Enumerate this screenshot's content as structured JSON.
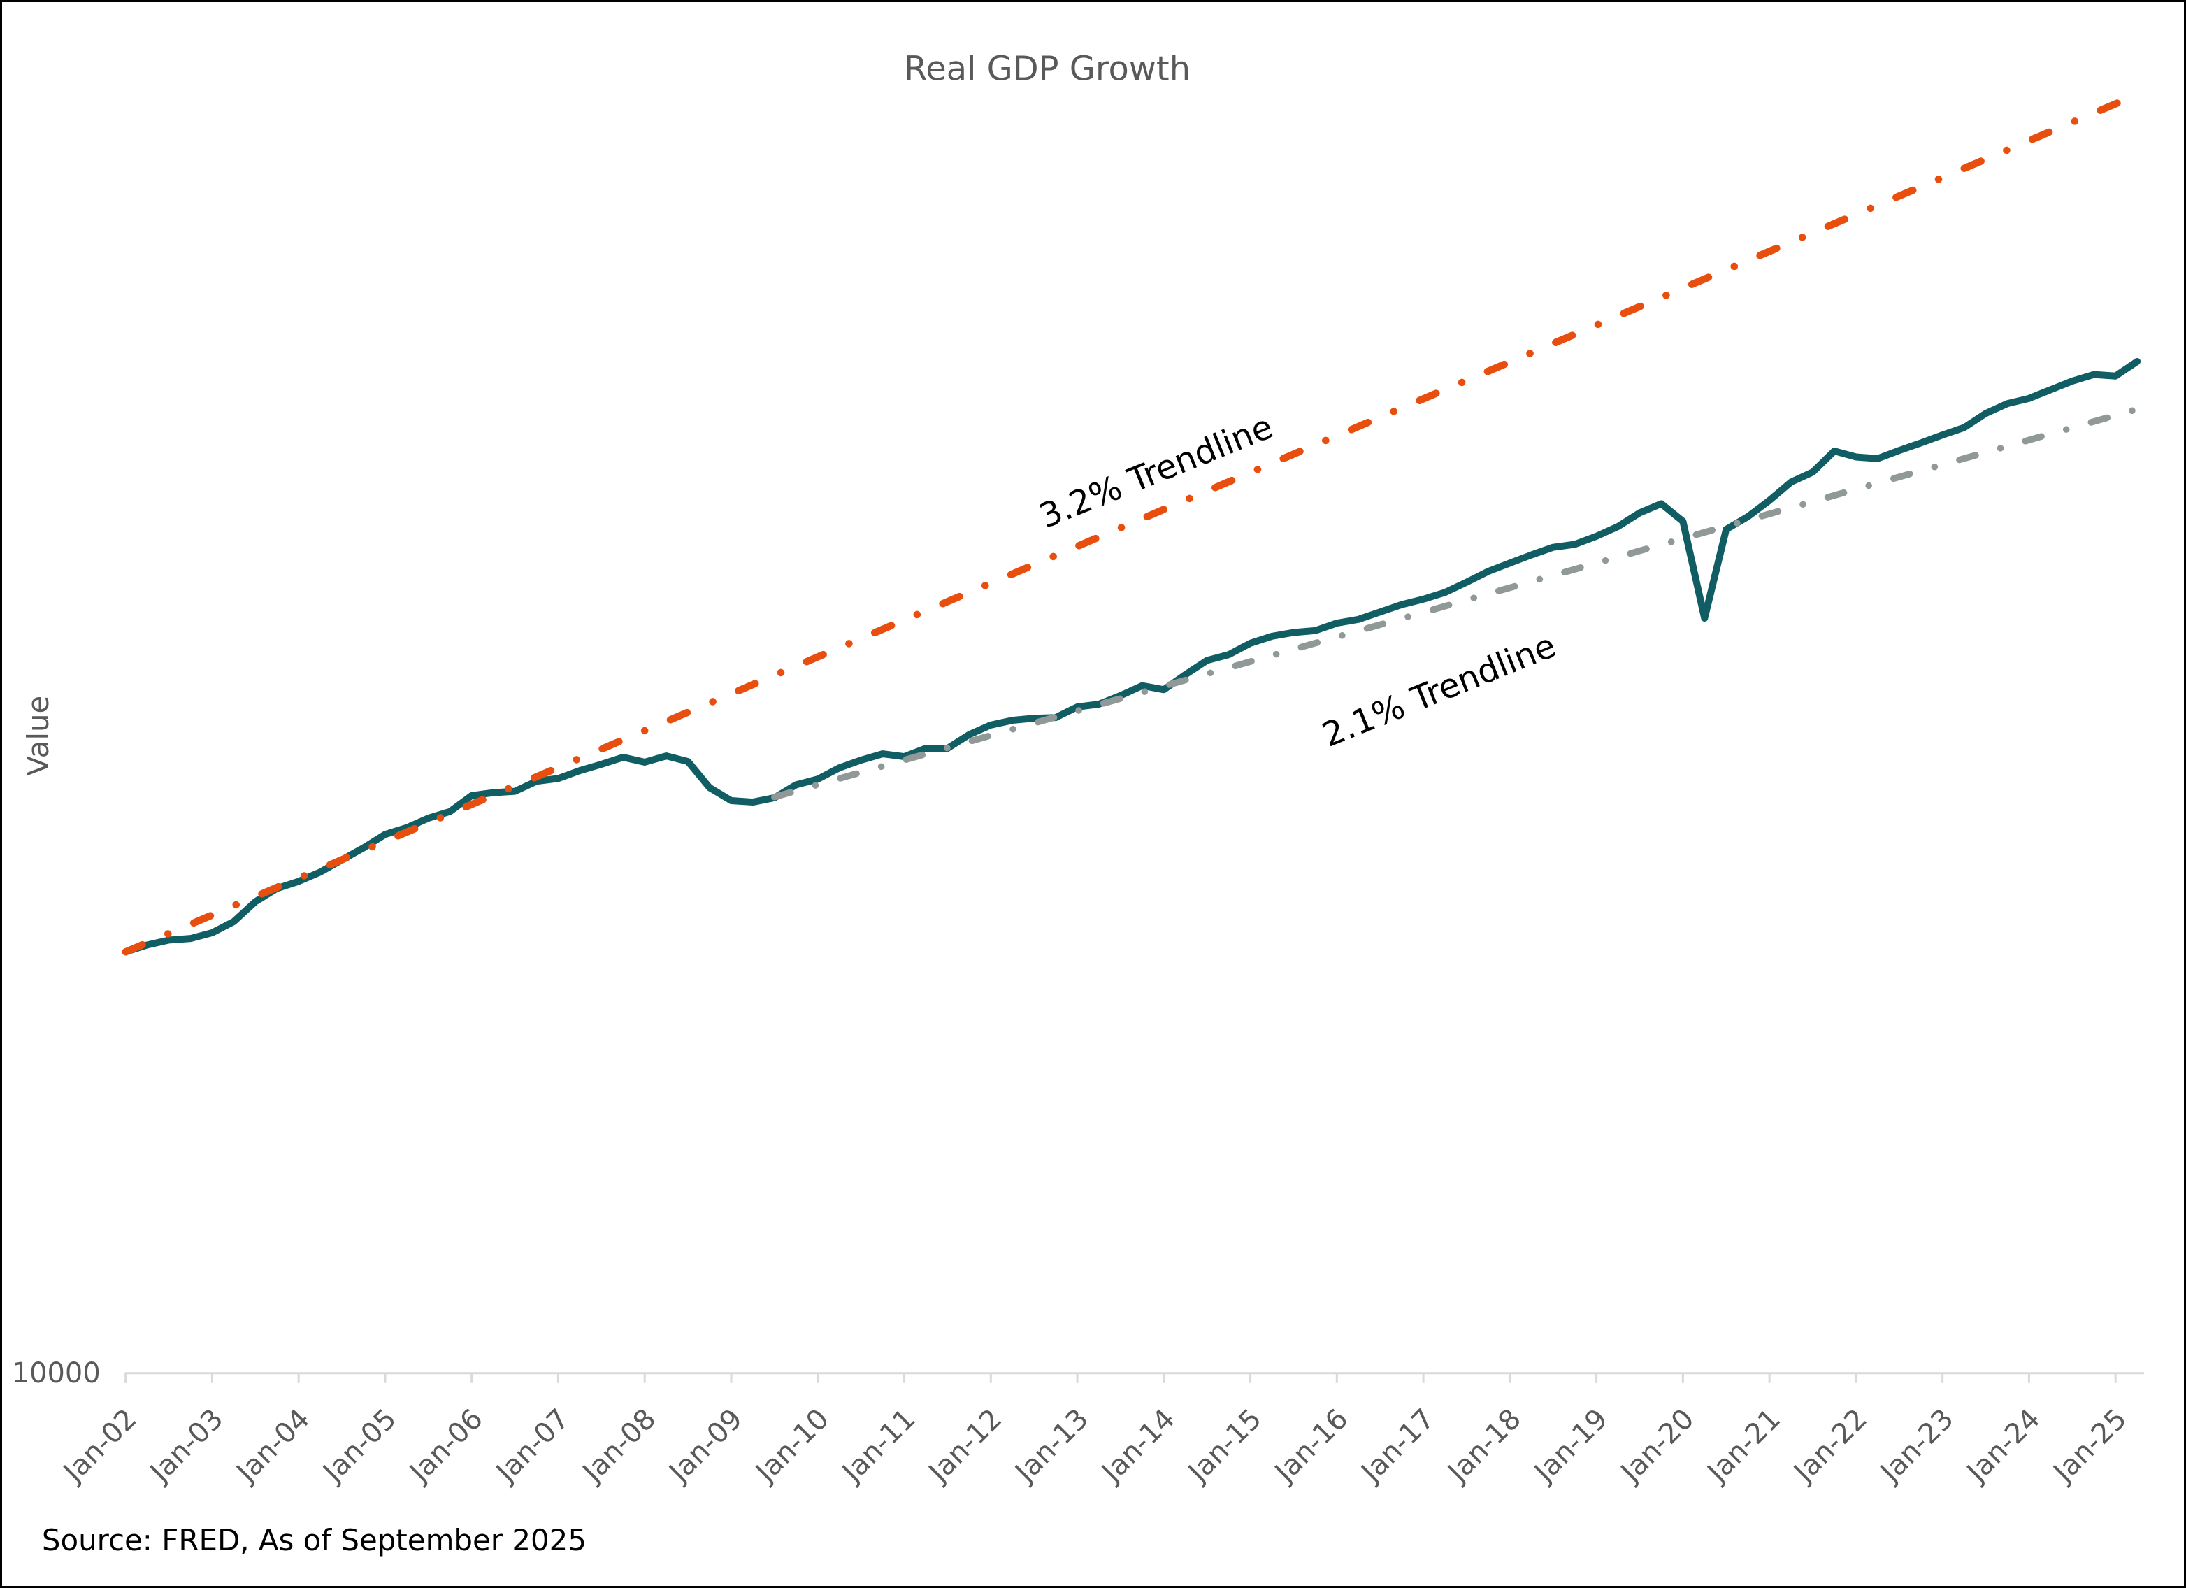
{
  "title": "Real GDP Growth",
  "y_axis": {
    "label": "Value",
    "tick_label": "10000"
  },
  "source": "Source: FRED, As of September 2025",
  "colors": {
    "gdp_line": "#105E64",
    "trendline_32": "#E84E0E",
    "trendline_21": "#919998",
    "axis": "#D9D9D9",
    "tick_text": "#595959",
    "title_text": "#595959",
    "annotation_text": "#000000",
    "background": "#FFFFFF"
  },
  "chart_data": {
    "type": "line",
    "title": "Real GDP Growth",
    "xlabel": "",
    "ylabel": "Value",
    "y_scale": "log",
    "y_ticks": [
      10000
    ],
    "grid": "off",
    "legend": "none",
    "x_tick_labels": [
      "Jan-02",
      "Jan-03",
      "Jan-04",
      "Jan-05",
      "Jan-06",
      "Jan-07",
      "Jan-08",
      "Jan-09",
      "Jan-10",
      "Jan-11",
      "Jan-12",
      "Jan-13",
      "Jan-14",
      "Jan-15",
      "Jan-16",
      "Jan-17",
      "Jan-18",
      "Jan-19",
      "Jan-20",
      "Jan-21",
      "Jan-22",
      "Jan-23",
      "Jan-24",
      "Jan-25"
    ],
    "series": [
      {
        "name": "Real GDP",
        "color": "#105E64",
        "style": "solid",
        "frequency": "quarterly",
        "x_start": 2002.0,
        "x_step": 0.25,
        "values": [
          14366,
          14450,
          14510,
          14530,
          14600,
          14740,
          14990,
          15160,
          15250,
          15370,
          15530,
          15690,
          15870,
          15960,
          16090,
          16180,
          16400,
          16440,
          16460,
          16600,
          16640,
          16750,
          16840,
          16940,
          16870,
          16960,
          16880,
          16510,
          16330,
          16310,
          16370,
          16550,
          16630,
          16790,
          16900,
          16990,
          16950,
          17070,
          17070,
          17270,
          17410,
          17480,
          17510,
          17520,
          17680,
          17720,
          17850,
          18000,
          17940,
          18170,
          18390,
          18480,
          18660,
          18770,
          18830,
          18860,
          18980,
          19040,
          19160,
          19280,
          19370,
          19480,
          19650,
          19830,
          19970,
          20110,
          20240,
          20290,
          20430,
          20600,
          20840,
          21000,
          20690,
          19060,
          20550,
          20770,
          21060,
          21390,
          21570,
          21960,
          21850,
          21820,
          21970,
          22110,
          22260,
          22400,
          22670,
          22860,
          22960,
          23130,
          23300,
          23430,
          23400,
          23690
        ]
      },
      {
        "name": "3.2% Trendline",
        "color": "#E84E0E",
        "style": "dashdot",
        "growth_rate_pct": 3.2,
        "x": [
          2002.0,
          2025.25
        ],
        "values": [
          14366,
          29700
        ]
      },
      {
        "name": "2.1% Trendline",
        "color": "#919998",
        "style": "dashdot",
        "growth_rate_pct": 2.1,
        "x": [
          2009.5,
          2025.25
        ],
        "values": [
          16380,
          22750
        ]
      }
    ],
    "annotations": [
      {
        "text": "3.2% Trendline",
        "x": 2013.96,
        "value": 21390,
        "rotation": -22
      },
      {
        "text": "2.1% Trendline",
        "x": 2017.23,
        "value": 17770,
        "rotation": -22
      }
    ]
  }
}
